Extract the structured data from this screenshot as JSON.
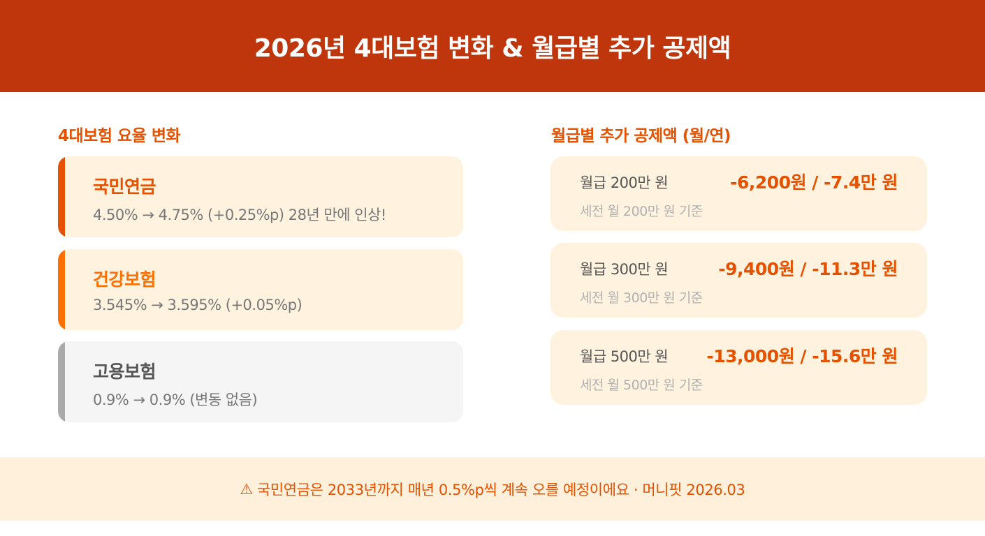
{
  "header": {
    "title": "2026년 4대보험 변화 & 월급별 추가 공제액"
  },
  "left": {
    "title": "4대보험 요율 변화",
    "items": [
      {
        "name": "국민연금",
        "desc": "4.50% → 4.75% (+0.25%p) 28년 만에 인상!",
        "bar_color": "#e65100",
        "name_color": "#e65100"
      },
      {
        "name": "건강보험",
        "desc": "3.545% → 3.595% (+0.05%p)",
        "bar_color": "#ff6f00",
        "name_color": "#ff6f00"
      },
      {
        "name": "고용보험",
        "desc": "0.9% → 0.9% (변동 없음)",
        "bar_color": "#aaaaaa",
        "name_color": "#555555"
      }
    ]
  },
  "right": {
    "title": "월급별 추가 공제액 (월/연)",
    "items": [
      {
        "label": "월급 200만 원",
        "value": "-6,200원 / -7.4만 원",
        "basis": "세전 월 200만 원 기준"
      },
      {
        "label": "월급 300만 원",
        "value": "-9,400원 / -11.3만 원",
        "basis": "세전 월 300만 원 기준"
      },
      {
        "label": "월급 500만 원",
        "value": "-13,000원 / -15.6만 원",
        "basis": "세전 월 500만 원 기준"
      }
    ]
  },
  "footer": {
    "icon": "⚠",
    "text": "국민연금은 2033년까지 매년 0.5%p씩 계속 오를 예정이에요 · 머니핏 2026.03"
  }
}
